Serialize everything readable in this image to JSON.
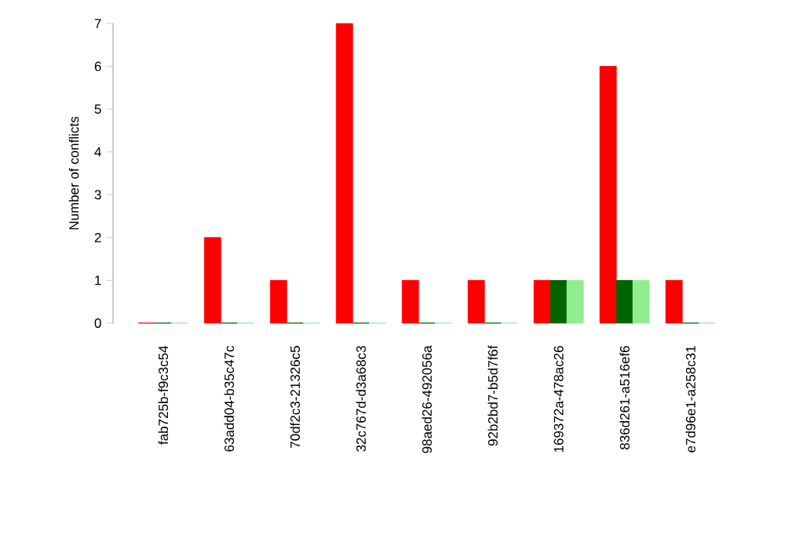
{
  "chart_data": {
    "type": "bar",
    "ylabel": "Number of conflicts",
    "categories": [
      "fab725b-f9c3c54",
      "63add04-b35c47c",
      "70df2c3-21326c5",
      "32c767d-d3a68c3",
      "98aed26-492056a",
      "92b2bd7-b5d7f6f",
      "169372a-478ac26",
      "836d261-a516ef6",
      "e7d96e1-a258c31"
    ],
    "series": [
      {
        "color": "#ff0000",
        "values": [
          0,
          2,
          1,
          7,
          1,
          1,
          1,
          6,
          1
        ]
      },
      {
        "color": "#006400",
        "values": [
          0,
          0,
          0,
          0,
          0,
          0,
          1,
          1,
          0
        ]
      },
      {
        "color": "#90ee90",
        "values": [
          0,
          0,
          0,
          0,
          0,
          0,
          1,
          1,
          0
        ]
      }
    ],
    "ylim": [
      0,
      7
    ],
    "yticks": [
      0,
      1,
      2,
      3,
      4,
      5,
      6,
      7
    ]
  }
}
